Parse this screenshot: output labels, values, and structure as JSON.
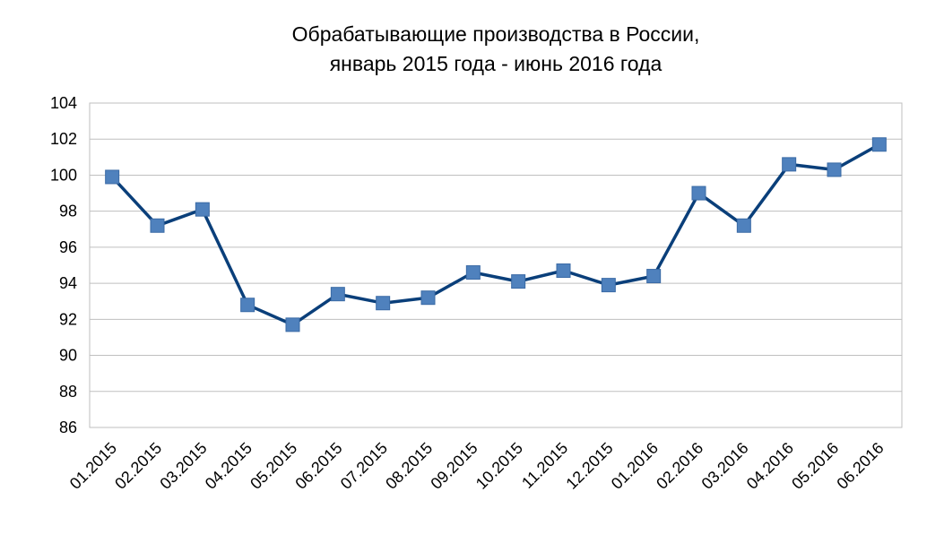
{
  "chart_data": {
    "type": "line",
    "title_lines": [
      "Обрабатывающие производства в России,",
      "январь 2015 года - июнь 2016 года"
    ],
    "xlabel": "",
    "ylabel": "",
    "ylim": [
      86,
      104
    ],
    "yticks": [
      "86",
      "88",
      "90",
      "92",
      "94",
      "96",
      "98",
      "100",
      "102",
      "104"
    ],
    "grid": true,
    "categories": [
      "01.2015",
      "02.2015",
      "03.2015",
      "04.2015",
      "05.2015",
      "06.2015",
      "07.2015",
      "08.2015",
      "09.2015",
      "10.2015",
      "11.2015",
      "12.2015",
      "01.2016",
      "02.2016",
      "03.2016",
      "04.2016",
      "05.2016",
      "06.2016"
    ],
    "series": [
      {
        "values": [
          99.9,
          97.2,
          98.1,
          92.8,
          91.7,
          93.4,
          92.9,
          93.2,
          94.6,
          94.1,
          94.7,
          93.9,
          94.4,
          99.0,
          97.2,
          100.6,
          100.3,
          101.7
        ],
        "color": "#0a3f7a",
        "marker_color": "#4f81bd"
      }
    ]
  }
}
